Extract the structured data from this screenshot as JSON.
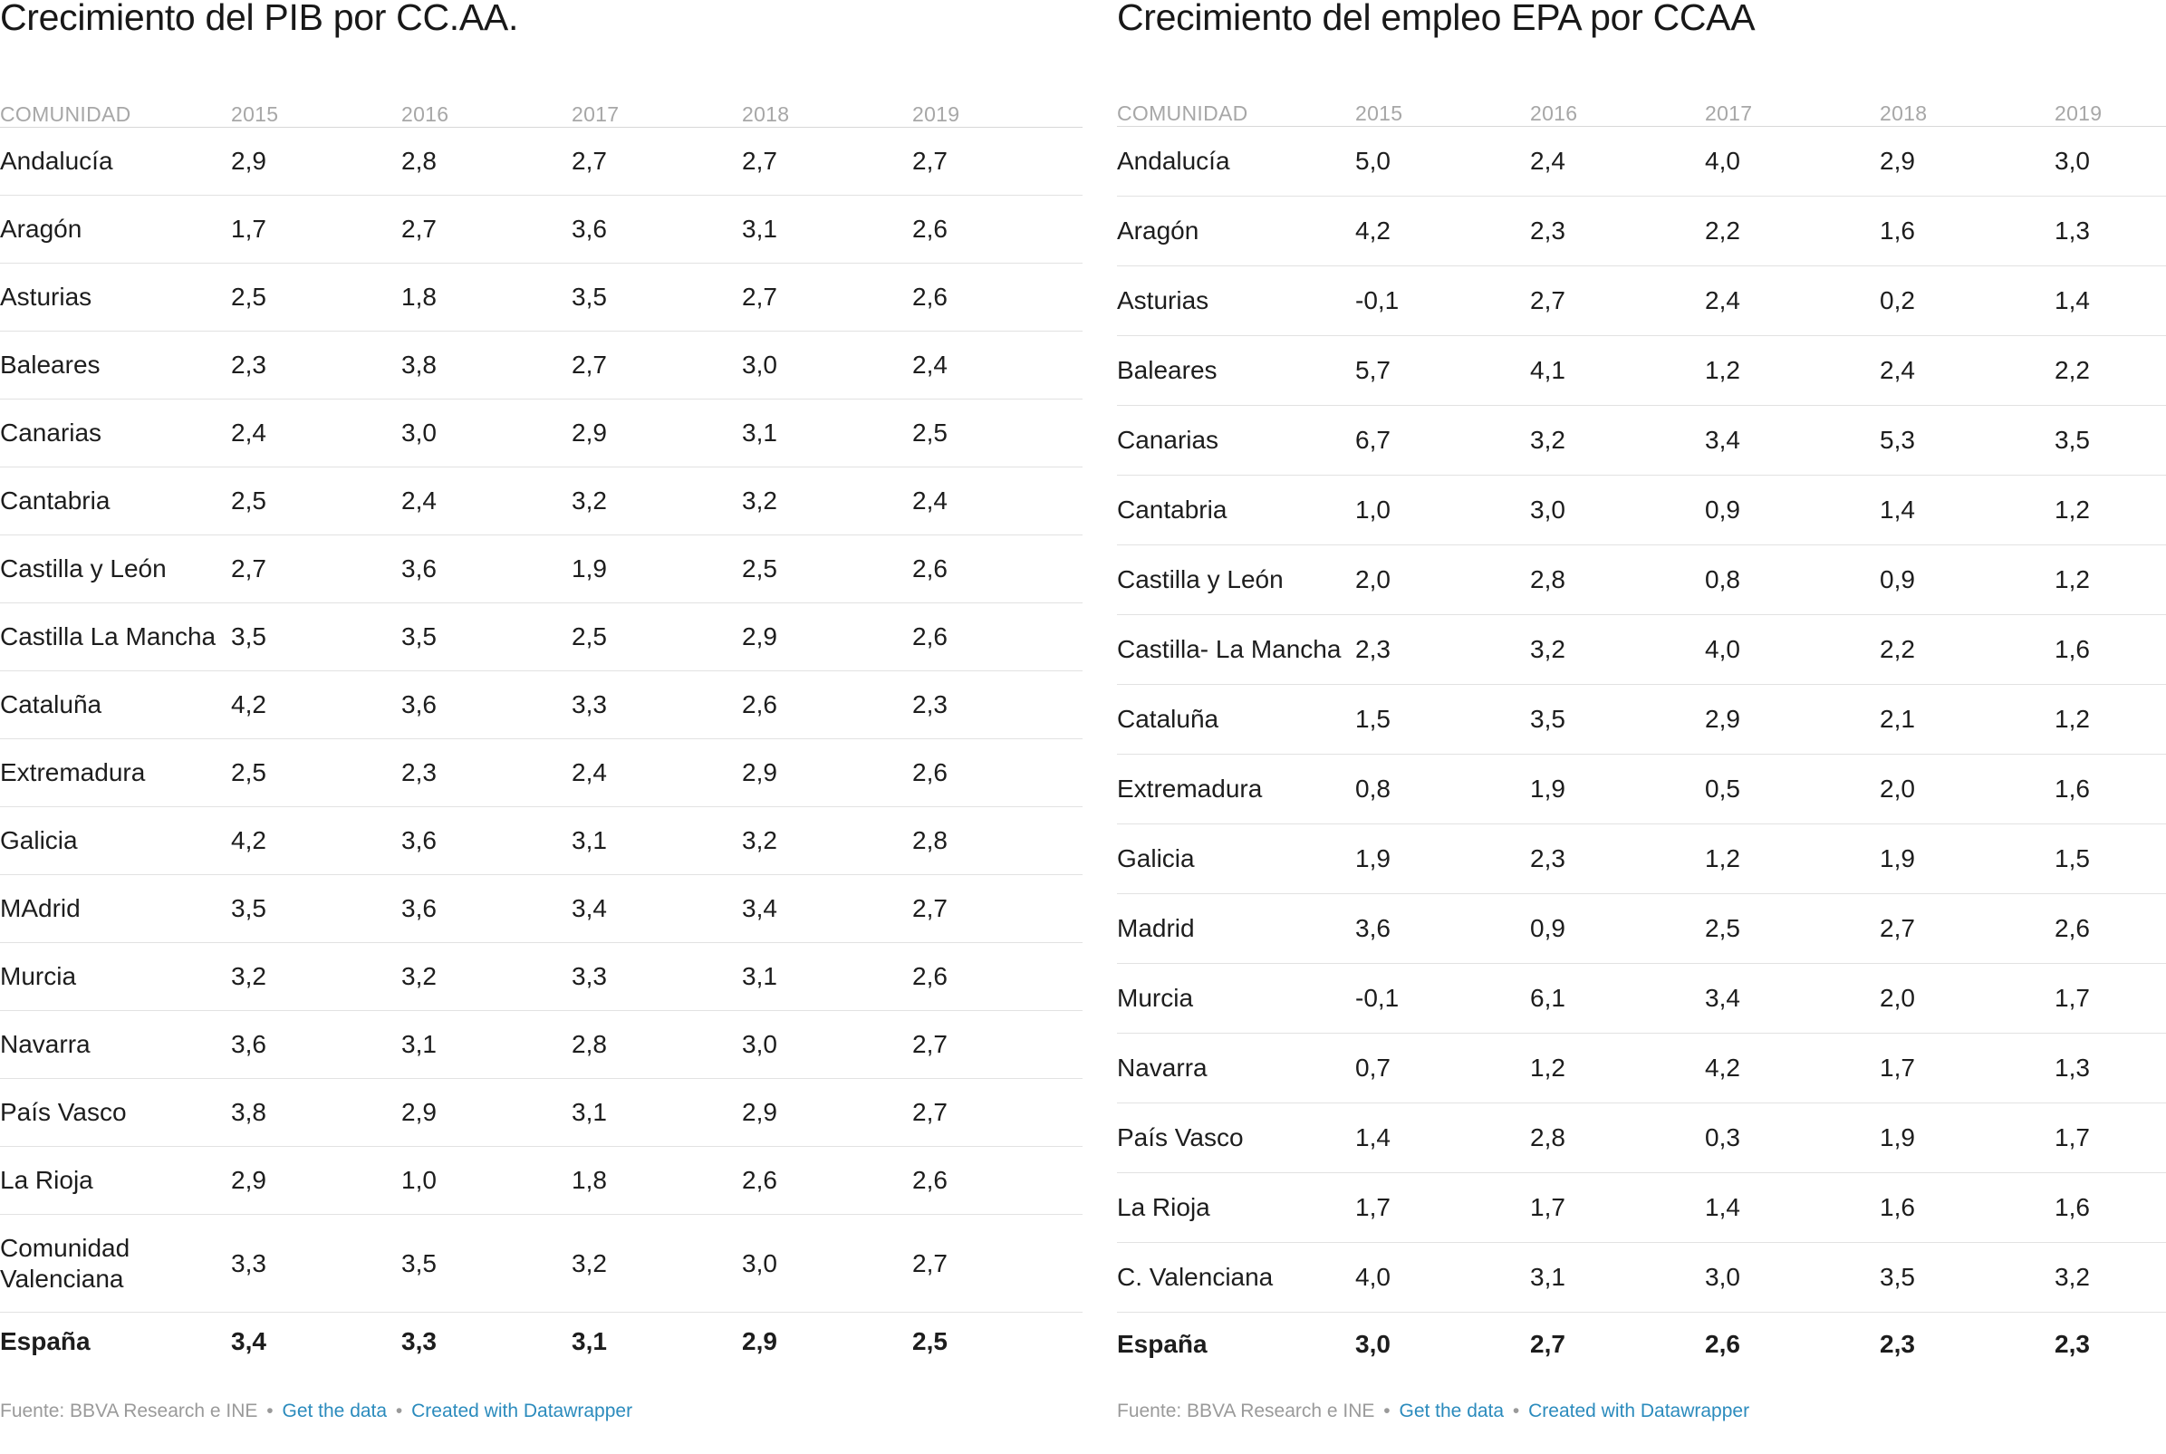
{
  "chart_data": [
    {
      "type": "table",
      "title": "Crecimiento del PIB por CC.AA.",
      "columns": [
        "COMUNIDAD",
        "2015",
        "2016",
        "2017",
        "2018",
        "2019"
      ],
      "rows": [
        [
          "Andalucía",
          "2,9",
          "2,8",
          "2,7",
          "2,7",
          "2,7"
        ],
        [
          "Aragón",
          "1,7",
          "2,7",
          "3,6",
          "3,1",
          "2,6"
        ],
        [
          "Asturias",
          "2,5",
          "1,8",
          "3,5",
          "2,7",
          "2,6"
        ],
        [
          "Baleares",
          "2,3",
          "3,8",
          "2,7",
          "3,0",
          "2,4"
        ],
        [
          "Canarias",
          "2,4",
          "3,0",
          "2,9",
          "3,1",
          "2,5"
        ],
        [
          "Cantabria",
          "2,5",
          "2,4",
          "3,2",
          "3,2",
          "2,4"
        ],
        [
          "Castilla y León",
          "2,7",
          "3,6",
          "1,9",
          "2,5",
          "2,6"
        ],
        [
          "Castilla La Mancha",
          "3,5",
          "3,5",
          "2,5",
          "2,9",
          "2,6"
        ],
        [
          "Cataluña",
          "4,2",
          "3,6",
          "3,3",
          "2,6",
          "2,3"
        ],
        [
          "Extremadura",
          "2,5",
          "2,3",
          "2,4",
          "2,9",
          "2,6"
        ],
        [
          "Galicia",
          "4,2",
          "3,6",
          "3,1",
          "3,2",
          "2,8"
        ],
        [
          "MAdrid",
          "3,5",
          "3,6",
          "3,4",
          "3,4",
          "2,7"
        ],
        [
          "Murcia",
          "3,2",
          "3,2",
          "3,3",
          "3,1",
          "2,6"
        ],
        [
          "Navarra",
          "3,6",
          "3,1",
          "2,8",
          "3,0",
          "2,7"
        ],
        [
          "País Vasco",
          "3,8",
          "2,9",
          "3,1",
          "2,9",
          "2,7"
        ],
        [
          "La Rioja",
          "2,9",
          "1,0",
          "1,8",
          "2,6",
          "2,6"
        ],
        [
          "Comunidad Valenciana",
          "3,3",
          "3,5",
          "3,2",
          "3,0",
          "2,7"
        ]
      ],
      "total": [
        "España",
        "3,4",
        "3,3",
        "3,1",
        "2,9",
        "2,5"
      ],
      "footer": {
        "source": "Fuente: BBVA Research e INE",
        "sep": "•",
        "get_data": "Get the data",
        "created": "Created with Datawrapper"
      }
    },
    {
      "type": "table",
      "title": "Crecimiento del empleo EPA por CCAA",
      "columns": [
        "COMUNIDAD",
        "2015",
        "2016",
        "2017",
        "2018",
        "2019"
      ],
      "rows": [
        [
          "Andalucía",
          "5,0",
          "2,4",
          "4,0",
          "2,9",
          "3,0"
        ],
        [
          "Aragón",
          "4,2",
          "2,3",
          "2,2",
          "1,6",
          "1,3"
        ],
        [
          "Asturias",
          "-0,1",
          "2,7",
          "2,4",
          "0,2",
          "1,4"
        ],
        [
          "Baleares",
          "5,7",
          "4,1",
          "1,2",
          "2,4",
          "2,2"
        ],
        [
          "Canarias",
          "6,7",
          "3,2",
          "3,4",
          "5,3",
          "3,5"
        ],
        [
          "Cantabria",
          "1,0",
          "3,0",
          "0,9",
          "1,4",
          "1,2"
        ],
        [
          "Castilla y León",
          "2,0",
          "2,8",
          "0,8",
          "0,9",
          "1,2"
        ],
        [
          "Castilla- La Mancha",
          "2,3",
          "3,2",
          "4,0",
          "2,2",
          "1,6"
        ],
        [
          "Cataluña",
          "1,5",
          "3,5",
          "2,9",
          "2,1",
          "1,2"
        ],
        [
          "Extremadura",
          "0,8",
          "1,9",
          "0,5",
          "2,0",
          "1,6"
        ],
        [
          "Galicia",
          "1,9",
          "2,3",
          "1,2",
          "1,9",
          "1,5"
        ],
        [
          "Madrid",
          "3,6",
          "0,9",
          "2,5",
          "2,7",
          "2,6"
        ],
        [
          "Murcia",
          "-0,1",
          "6,1",
          "3,4",
          "2,0",
          "1,7"
        ],
        [
          "Navarra",
          "0,7",
          "1,2",
          "4,2",
          "1,7",
          "1,3"
        ],
        [
          "País Vasco",
          "1,4",
          "2,8",
          "0,3",
          "1,9",
          "1,7"
        ],
        [
          "La Rioja",
          "1,7",
          "1,7",
          "1,4",
          "1,6",
          "1,6"
        ],
        [
          "C. Valenciana",
          "4,0",
          "3,1",
          "3,0",
          "3,5",
          "3,2"
        ]
      ],
      "total": [
        "España",
        "3,0",
        "2,7",
        "2,6",
        "2,3",
        "2,3"
      ],
      "footer": {
        "source": "Fuente: BBVA Research e INE",
        "sep": "•",
        "get_data": "Get the data",
        "created": "Created with Datawrapper"
      }
    }
  ]
}
